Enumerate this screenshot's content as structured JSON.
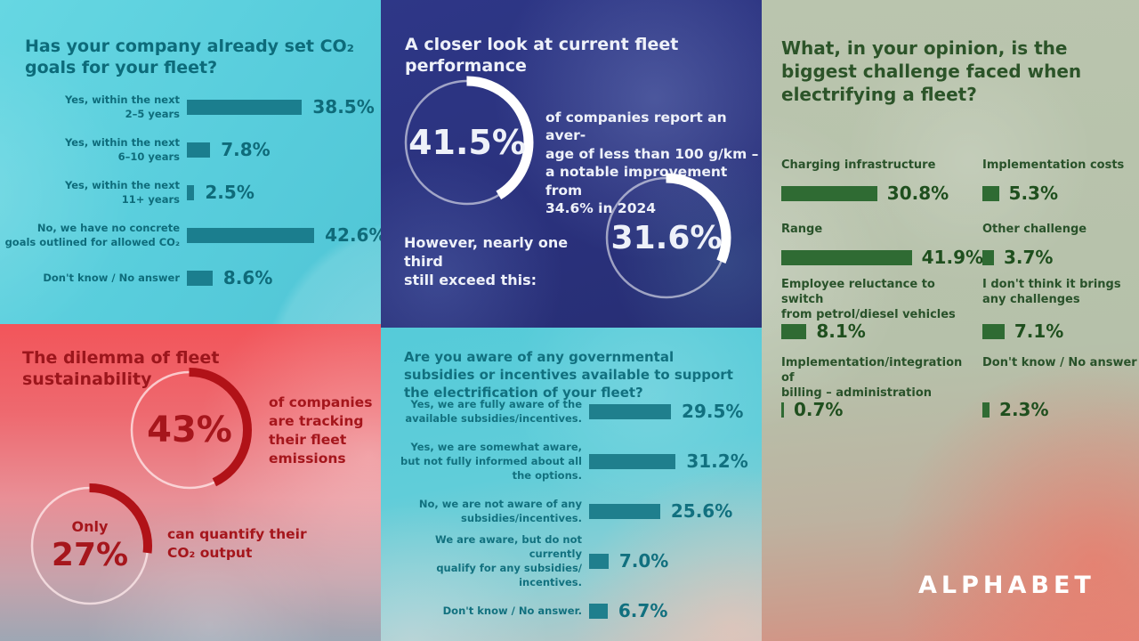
{
  "brand": {
    "logo_text": "ALPHABET"
  },
  "colors": {
    "cyan_panel": "#58cddc",
    "dark_blue_panel": "#2a317c",
    "sage_panel": "#b8c3ac",
    "red_panel": "#f2555a",
    "teal_bar": "#1b7e8e",
    "green_bar": "#2f6b33",
    "red_arc": "#b11218",
    "white_arc": "#ffffff",
    "teal_text": "#0d6b7a",
    "green_text": "#2c5429",
    "red_text": "#a5161c"
  },
  "chart_data": [
    {
      "id": "co2_goals",
      "type": "bar",
      "orientation": "horizontal",
      "title": "Has your company already set CO₂\ngoals for your fleet?",
      "categories": [
        "Yes, within the next\n2–5 years",
        "Yes, within the next\n6–10 years",
        "Yes, within the next\n11+ years",
        "No, we have no concrete\ngoals outlined for allowed CO₂",
        "Don't know / No answer"
      ],
      "values": [
        38.5,
        7.8,
        2.5,
        42.6,
        8.6
      ],
      "value_labels": [
        "38.5%",
        "7.8%",
        "2.5%",
        "42.6%",
        "8.6%"
      ],
      "unit": "%",
      "xlim": [
        0,
        50
      ],
      "grid": false
    },
    {
      "id": "fleet_performance",
      "type": "donut",
      "title": "A closer look at current fleet\nperformance",
      "stats": [
        {
          "value": 41.5,
          "label": "41.5%",
          "caption": "of companies report an aver-\nage of less than 100 g/km –\na notable improvement from\n34.6% in 2024"
        },
        {
          "value": 31.6,
          "label": "31.6%"
        }
      ],
      "lead_text": "However, nearly one third\nstill exceed this:"
    },
    {
      "id": "electrification_challenges",
      "type": "bar",
      "orientation": "horizontal",
      "layout": "two-column",
      "title": "What, in your opinion, is the\nbiggest challenge faced when\nelectrifying a fleet?",
      "categories": [
        "Charging infrastructure",
        "Implementation costs",
        "Range",
        "Other challenge",
        "Employee reluctance to switch\nfrom petrol/diesel vehicles",
        "I don't think it brings\nany challenges",
        "Implementation/integration of\nbilling – administration",
        "Don't know / No answer"
      ],
      "values": [
        30.8,
        5.3,
        41.9,
        3.7,
        8.1,
        7.1,
        0.7,
        2.3
      ],
      "value_labels": [
        "30.8%",
        "5.3%",
        "41.9%",
        "3.7%",
        "8.1%",
        "7.1%",
        "0.7%",
        "2.3%"
      ],
      "unit": "%",
      "xlim": [
        0,
        45
      ],
      "grid": false
    },
    {
      "id": "sustainability_dilemma",
      "type": "donut",
      "title": "The dilemma of fleet\nsustainability",
      "stats": [
        {
          "value": 43,
          "label": "43%",
          "caption": "of companies\nare tracking\ntheir fleet\nemissions"
        },
        {
          "value": 27,
          "label": "27%",
          "prefix": "Only",
          "caption": "can quantify their\nCO₂ output"
        }
      ]
    },
    {
      "id": "subsidy_awareness",
      "type": "bar",
      "orientation": "horizontal",
      "title": "Are you aware of any governmental\nsubsidies or incentives available to support\nthe electrification of your fleet?",
      "categories": [
        "Yes, we are fully aware of the\navailable subsidies/incentives.",
        "Yes, we are somewhat aware,\nbut not fully informed about all\nthe options.",
        "No, we are not aware of any\nsubsidies/incentives.",
        "We are aware, but do not currently\nqualify for any subsidies/\nincentives.",
        "Don't know / No answer."
      ],
      "values": [
        29.5,
        31.2,
        25.6,
        7.0,
        6.7
      ],
      "value_labels": [
        "29.5%",
        "31.2%",
        "25.6%",
        "7.0%",
        "6.7%"
      ],
      "unit": "%",
      "xlim": [
        0,
        35
      ],
      "grid": false
    }
  ]
}
